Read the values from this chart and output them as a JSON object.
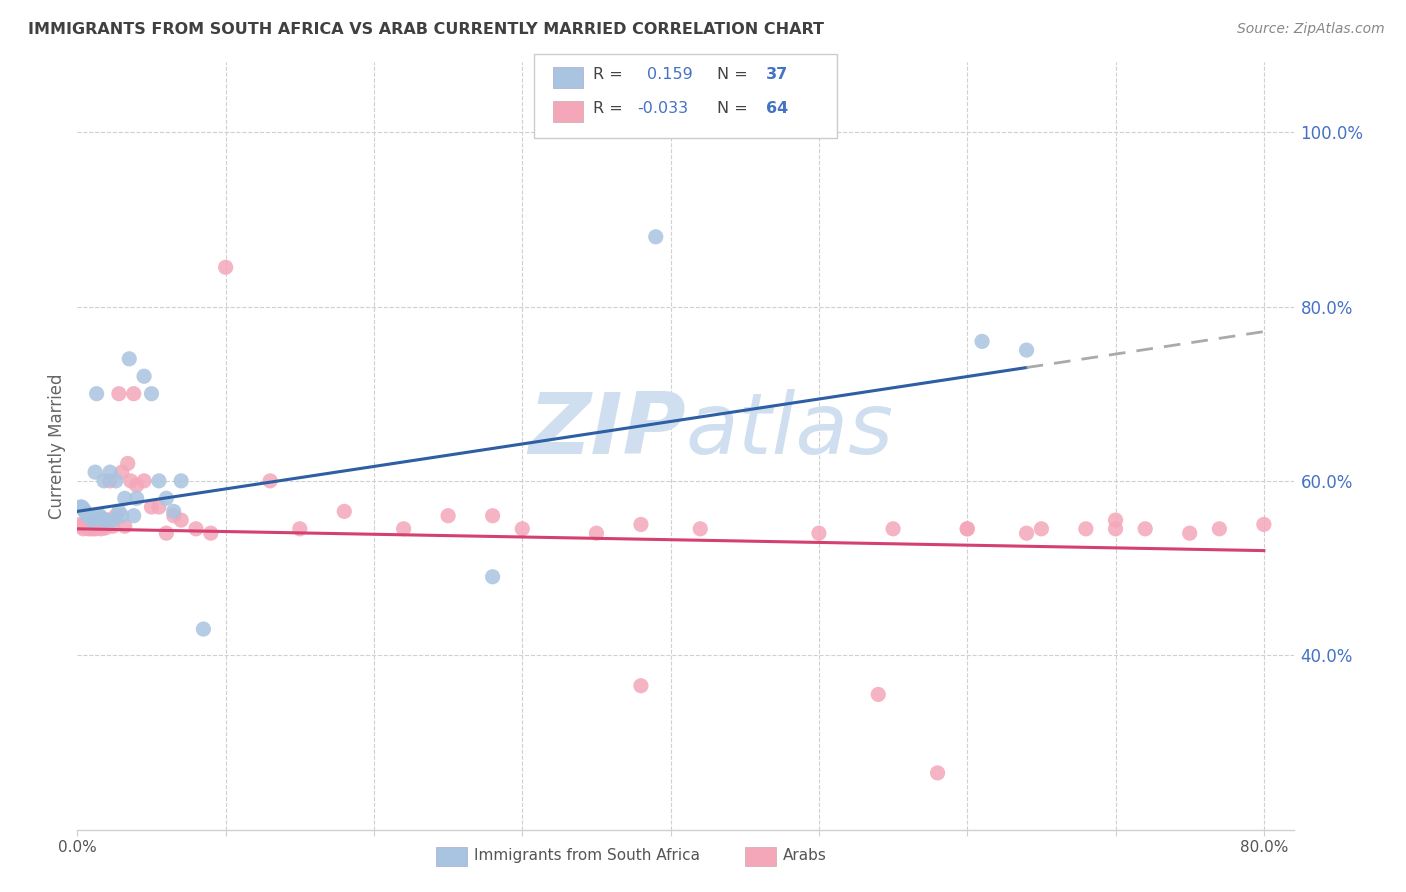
{
  "title": "IMMIGRANTS FROM SOUTH AFRICA VS ARAB CURRENTLY MARRIED CORRELATION CHART",
  "source": "Source: ZipAtlas.com",
  "ylabel": "Currently Married",
  "xlim": [
    0.0,
    0.82
  ],
  "ylim": [
    0.2,
    1.08
  ],
  "yticks": [
    0.4,
    0.6,
    0.8,
    1.0
  ],
  "ytick_labels": [
    "40.0%",
    "60.0%",
    "80.0%",
    "100.0%"
  ],
  "xtick_positions": [
    0.0,
    0.1,
    0.2,
    0.3,
    0.4,
    0.5,
    0.6,
    0.7,
    0.8
  ],
  "xtick_labels": [
    "0.0%",
    "",
    "",
    "",
    "",
    "",
    "",
    "",
    "80.0%"
  ],
  "r_blue": 0.159,
  "n_blue": 37,
  "r_pink": -0.033,
  "n_pink": 64,
  "blue_color": "#a8c4e0",
  "pink_color": "#f4a7b9",
  "blue_line_color": "#2e5fa3",
  "pink_line_color": "#d44070",
  "legend_text_color": "#4472c4",
  "title_color": "#404040",
  "source_color": "#888888",
  "grid_color": "#d0d0d0",
  "watermark_color": "#d0dff0",
  "background_color": "#ffffff",
  "blue_scatter_x": [
    0.002,
    0.003,
    0.004,
    0.005,
    0.006,
    0.007,
    0.008,
    0.009,
    0.01,
    0.011,
    0.012,
    0.013,
    0.015,
    0.016,
    0.017,
    0.018,
    0.02,
    0.022,
    0.024,
    0.026,
    0.028,
    0.03,
    0.032,
    0.035,
    0.038,
    0.04,
    0.045,
    0.05,
    0.055,
    0.06,
    0.065,
    0.07,
    0.085,
    0.28,
    0.39,
    0.61,
    0.64
  ],
  "blue_scatter_y": [
    0.57,
    0.57,
    0.568,
    0.565,
    0.563,
    0.56,
    0.56,
    0.558,
    0.555,
    0.558,
    0.61,
    0.7,
    0.56,
    0.558,
    0.555,
    0.6,
    0.555,
    0.61,
    0.555,
    0.6,
    0.565,
    0.56,
    0.58,
    0.74,
    0.56,
    0.58,
    0.72,
    0.7,
    0.6,
    0.58,
    0.565,
    0.6,
    0.43,
    0.49,
    0.88,
    0.76,
    0.75
  ],
  "pink_scatter_x": [
    0.002,
    0.003,
    0.004,
    0.005,
    0.006,
    0.007,
    0.008,
    0.009,
    0.01,
    0.011,
    0.012,
    0.013,
    0.014,
    0.015,
    0.016,
    0.017,
    0.018,
    0.019,
    0.02,
    0.022,
    0.024,
    0.026,
    0.028,
    0.03,
    0.032,
    0.034,
    0.036,
    0.038,
    0.04,
    0.045,
    0.05,
    0.055,
    0.06,
    0.065,
    0.07,
    0.08,
    0.09,
    0.1,
    0.13,
    0.15,
    0.18,
    0.22,
    0.25,
    0.28,
    0.3,
    0.35,
    0.38,
    0.42,
    0.5,
    0.54,
    0.58,
    0.6,
    0.64,
    0.68,
    0.7,
    0.72,
    0.75,
    0.77,
    0.8,
    0.38,
    0.55,
    0.6,
    0.65,
    0.7
  ],
  "pink_scatter_y": [
    0.55,
    0.548,
    0.545,
    0.55,
    0.548,
    0.546,
    0.545,
    0.548,
    0.545,
    0.548,
    0.545,
    0.555,
    0.548,
    0.548,
    0.545,
    0.552,
    0.548,
    0.546,
    0.555,
    0.6,
    0.548,
    0.56,
    0.7,
    0.61,
    0.548,
    0.62,
    0.6,
    0.7,
    0.595,
    0.6,
    0.57,
    0.57,
    0.54,
    0.56,
    0.555,
    0.545,
    0.54,
    0.845,
    0.6,
    0.545,
    0.565,
    0.545,
    0.56,
    0.56,
    0.545,
    0.54,
    0.55,
    0.545,
    0.54,
    0.355,
    0.265,
    0.545,
    0.54,
    0.545,
    0.555,
    0.545,
    0.54,
    0.545,
    0.55,
    0.365,
    0.545,
    0.545,
    0.545,
    0.545
  ]
}
